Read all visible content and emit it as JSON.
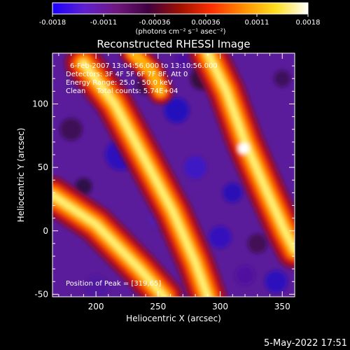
{
  "chart_data": {
    "type": "heatmap",
    "title": "Reconstructed RHESSI Image",
    "xlabel": "Heliocentric X (arcsec)",
    "ylabel": "Heliocentric Y (arcsec)",
    "xlim": [
      165,
      360
    ],
    "ylim": [
      -52,
      140
    ],
    "xticks": [
      200,
      250,
      300,
      350
    ],
    "yticks": [
      -50,
      0,
      50,
      100
    ],
    "colorbar": {
      "label": "(photons cm⁻² s⁻¹ asec⁻²)",
      "range": [
        -0.0018,
        0.0018
      ],
      "tick_labels": [
        "-0.0018",
        "-0.0011",
        "-0.00036",
        "0.00036",
        "0.0011",
        "0.0018"
      ],
      "colormap": [
        "#1a00ff",
        "#6020d0",
        "#701880",
        "#400040",
        "#a01000",
        "#ff3000",
        "#ff9000",
        "#ffe020",
        "#ffffff"
      ]
    },
    "annotations": [
      "6-Feb-2007 13:04:56.000 to 13:10:56.000",
      "Detectors: 3F 4F 5F 6F 7F 8F, Att 0",
      "Energy Range: 25.0 - 50.0 keV",
      "Clean     Total counts: 5.74E+04",
      "Position of Peak = [319,65]"
    ],
    "peak_position": [
      319,
      65
    ],
    "stripes": [
      {
        "description": "bright diagonal band",
        "points": [
          [
            165,
            28
          ],
          [
            200,
            5
          ],
          [
            235,
            -30
          ],
          [
            255,
            -52
          ]
        ],
        "intensity": 0.0018
      },
      {
        "description": "bright diagonal band",
        "points": [
          [
            190,
            132
          ],
          [
            215,
            100
          ],
          [
            240,
            55
          ],
          [
            262,
            15
          ],
          [
            280,
            -25
          ],
          [
            290,
            -52
          ]
        ],
        "intensity": 0.0018
      },
      {
        "description": "bright diagonal band",
        "points": [
          [
            290,
            140
          ],
          [
            305,
            110
          ],
          [
            320,
            70
          ],
          [
            338,
            30
          ],
          [
            352,
            0
          ],
          [
            360,
            -15
          ]
        ],
        "intensity": 0.0018
      },
      {
        "description": "bright diagonal band",
        "points": [
          [
            230,
            140
          ],
          [
            245,
            125
          ],
          [
            252,
            110
          ]
        ],
        "intensity": 0.0011
      }
    ]
  },
  "footer": {
    "timestamp": "5-May-2022 17:51"
  }
}
